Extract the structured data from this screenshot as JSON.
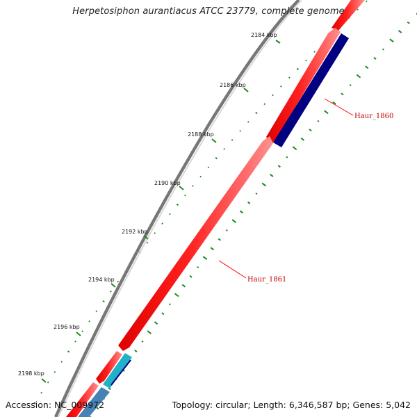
{
  "title": "Herpetosiphon aurantiacus ATCC 23779, complete genome",
  "accession": "Accession: NC_009972",
  "summary": "Topology: circular; Length: 6,346,587 bp; Genes: 5,042",
  "ticks": [
    "2184 kbp",
    "2186 kbp",
    "2188 kbp",
    "2190 kbp",
    "2192 kbp",
    "2194 kbp",
    "2196 kbp",
    "2198 kbp"
  ],
  "gene_labels": [
    "Haur_1860",
    "Haur_1861"
  ],
  "colors": {
    "forward_cds": "#ff0000",
    "reverse_cds": "#000080",
    "backbone": "#808080",
    "gc_marks": "#1a8a1a",
    "label_line": "#ff0000",
    "small_feature": "#20b2c8",
    "rrna_feature": "#4682b4"
  }
}
